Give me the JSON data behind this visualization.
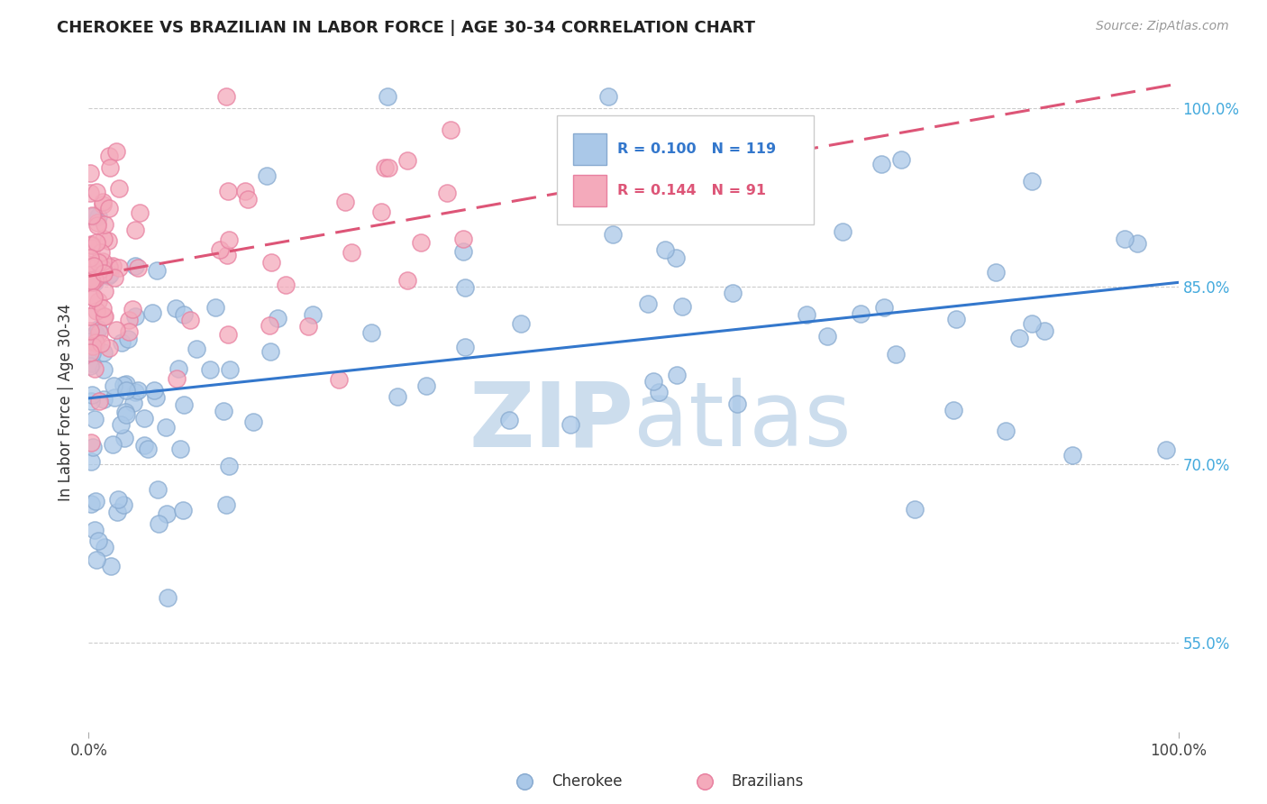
{
  "title": "CHEROKEE VS BRAZILIAN IN LABOR FORCE | AGE 30-34 CORRELATION CHART",
  "source": "Source: ZipAtlas.com",
  "ylabel": "In Labor Force | Age 30-34",
  "xlim": [
    0.0,
    1.0
  ],
  "ylim": [
    0.475,
    1.03
  ],
  "yticks": [
    0.55,
    0.7,
    0.85,
    1.0
  ],
  "ytick_labels": [
    "55.0%",
    "70.0%",
    "85.0%",
    "100.0%"
  ],
  "cherokee_R": 0.1,
  "cherokee_N": 119,
  "brazilian_R": 0.144,
  "brazilian_N": 91,
  "cherokee_color": "#aac8e8",
  "cherokee_edge": "#88aad0",
  "brazilian_color": "#f4aabb",
  "brazilian_edge": "#e880a0",
  "cherokee_line_color": "#3377cc",
  "brazilian_line_color": "#dd5577",
  "watermark_color": "#ccdded",
  "background_color": "#ffffff",
  "cherokee_line_start_y": 0.755,
  "cherokee_line_end_y": 0.85,
  "brazilian_line_start_y": 0.87,
  "brazilian_line_end_y": 1.02
}
